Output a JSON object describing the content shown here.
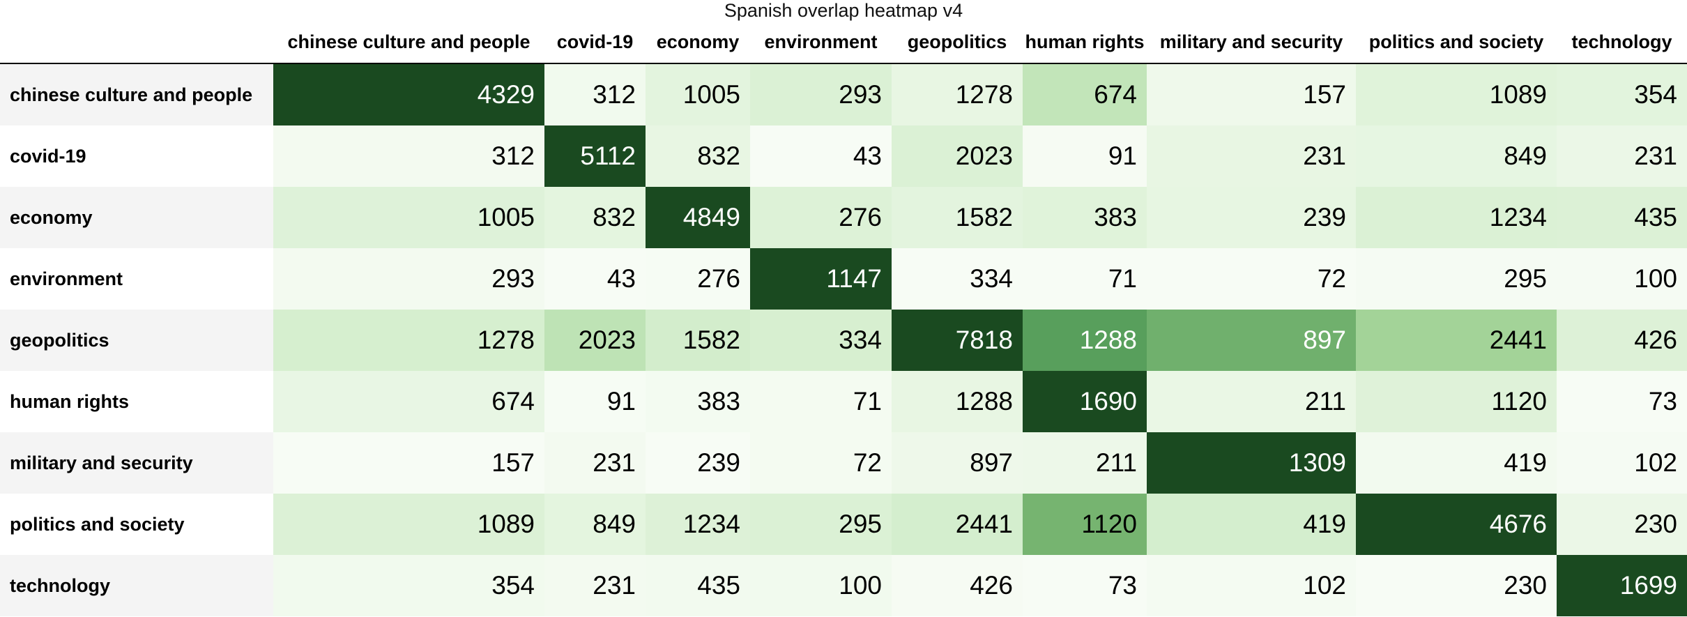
{
  "chart_data": {
    "type": "heatmap",
    "title": "Spanish overlap heatmap v4",
    "rows": [
      "chinese culture and people",
      "covid-19",
      "economy",
      "environment",
      "geopolitics",
      "human rights",
      "military and security",
      "politics and society",
      "technology"
    ],
    "columns": [
      "chinese culture and people",
      "covid-19",
      "economy",
      "environment",
      "geopolitics",
      "human rights",
      "military and security",
      "politics and society",
      "technology"
    ],
    "values": [
      [
        4329,
        312,
        1005,
        293,
        1278,
        674,
        157,
        1089,
        354
      ],
      [
        312,
        5112,
        832,
        43,
        2023,
        91,
        231,
        849,
        231
      ],
      [
        1005,
        832,
        4849,
        276,
        1582,
        383,
        239,
        1234,
        435
      ],
      [
        293,
        43,
        276,
        1147,
        334,
        71,
        72,
        295,
        100
      ],
      [
        1278,
        2023,
        1582,
        334,
        7818,
        1288,
        897,
        2441,
        426
      ],
      [
        674,
        91,
        383,
        71,
        1288,
        1690,
        211,
        1120,
        73
      ],
      [
        157,
        231,
        239,
        72,
        897,
        211,
        1309,
        419,
        102
      ],
      [
        1089,
        849,
        1234,
        295,
        2441,
        1120,
        419,
        4676,
        230
      ],
      [
        354,
        231,
        435,
        100,
        426,
        73,
        102,
        230,
        1699
      ]
    ],
    "color_scale": {
      "name": "Greens",
      "normalization": "per column",
      "low": "#f7fcf5",
      "high": "#1a4a20"
    }
  }
}
